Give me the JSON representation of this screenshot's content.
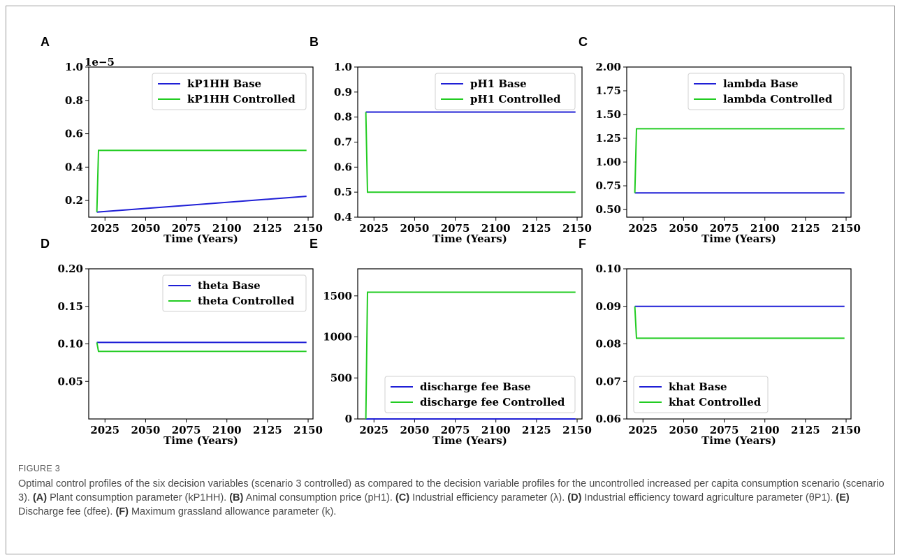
{
  "caption": {
    "label": "FIGURE 3",
    "parts": [
      {
        "t": "Optimal control profiles of the six decision variables (scenario 3 controlled) as compared to the decision variable profiles for the uncontrolled increased per capita consumption scenario (scenario 3). ",
        "b": false
      },
      {
        "t": "(A)",
        "b": true
      },
      {
        "t": " Plant consumption parameter (kP1HH). ",
        "b": false
      },
      {
        "t": "(B)",
        "b": true
      },
      {
        "t": " Animal consumption price (pH1). ",
        "b": false
      },
      {
        "t": "(C)",
        "b": true
      },
      {
        "t": " Industrial efficiency parameter (λ). ",
        "b": false
      },
      {
        "t": "(D)",
        "b": true
      },
      {
        "t": " Industrial efficiency toward agriculture parameter (θP1). ",
        "b": false
      },
      {
        "t": "(E)",
        "b": true
      },
      {
        "t": " Discharge fee (dfee). ",
        "b": false
      },
      {
        "t": "(F)",
        "b": true
      },
      {
        "t": " Maximum grassland allowance parameter (k).",
        "b": false
      }
    ]
  },
  "colors": {
    "base": "#1f1fd6",
    "controlled": "#22cc22"
  },
  "chart_data": [
    {
      "panel": "A",
      "type": "line",
      "xlabel": "Time (Years)",
      "ylabel": "",
      "offset_text": "1e−5",
      "xlim": [
        2015,
        2153
      ],
      "ylim": [
        0.1,
        1.0
      ],
      "xticks": [
        2025,
        2050,
        2075,
        2100,
        2125,
        2150
      ],
      "yticks": [
        0.2,
        0.4,
        0.6,
        0.8,
        1.0
      ],
      "ytick_labels": [
        "0.2",
        "0.4",
        "0.6",
        "0.8",
        "1.0"
      ],
      "legend_position": "top-right",
      "series": [
        {
          "name": "kP1HH Base",
          "color": "base",
          "x": [
            2020,
            2149
          ],
          "y": [
            0.13,
            0.225
          ]
        },
        {
          "name": "kP1HH  Controlled",
          "color": "controlled",
          "x": [
            2020,
            2021,
            2149
          ],
          "y": [
            0.13,
            0.5,
            0.5
          ]
        }
      ]
    },
    {
      "panel": "B",
      "type": "line",
      "xlabel": "Time (Years)",
      "ylabel": "",
      "xlim": [
        2015,
        2153
      ],
      "ylim": [
        0.4,
        1.0
      ],
      "xticks": [
        2025,
        2050,
        2075,
        2100,
        2125,
        2150
      ],
      "yticks": [
        0.4,
        0.5,
        0.6,
        0.7,
        0.8,
        0.9,
        1.0
      ],
      "ytick_labels": [
        "0.4",
        "0.5",
        "0.6",
        "0.7",
        "0.8",
        "0.9",
        "1.0"
      ],
      "legend_position": "top-right",
      "series": [
        {
          "name": "pH1 Base",
          "color": "base",
          "x": [
            2020,
            2149
          ],
          "y": [
            0.82,
            0.82
          ]
        },
        {
          "name": "pH1  Controlled",
          "color": "controlled",
          "x": [
            2020,
            2021,
            2149
          ],
          "y": [
            0.82,
            0.5,
            0.5
          ]
        }
      ]
    },
    {
      "panel": "C",
      "type": "line",
      "xlabel": "Time (Years)",
      "ylabel": "",
      "xlim": [
        2015,
        2153
      ],
      "ylim": [
        0.42,
        2.0
      ],
      "xticks": [
        2025,
        2050,
        2075,
        2100,
        2125,
        2150
      ],
      "yticks": [
        0.5,
        0.75,
        1.0,
        1.25,
        1.5,
        1.75,
        2.0
      ],
      "ytick_labels": [
        "0.50",
        "0.75",
        "1.00",
        "1.25",
        "1.50",
        "1.75",
        "2.00"
      ],
      "legend_position": "top-right",
      "series": [
        {
          "name": "lambda Base",
          "color": "base",
          "x": [
            2020,
            2149
          ],
          "y": [
            0.675,
            0.675
          ]
        },
        {
          "name": "lambda  Controlled",
          "color": "controlled",
          "x": [
            2020,
            2021,
            2149
          ],
          "y": [
            0.675,
            1.35,
            1.35
          ]
        }
      ]
    },
    {
      "panel": "D",
      "type": "line",
      "xlabel": "Time (Years)",
      "ylabel": "",
      "xlim": [
        2015,
        2153
      ],
      "ylim": [
        0.0,
        0.2
      ],
      "xticks": [
        2025,
        2050,
        2075,
        2100,
        2125,
        2150
      ],
      "yticks": [
        0.05,
        0.1,
        0.15,
        0.2
      ],
      "ytick_labels": [
        "0.05",
        "0.10",
        "0.15",
        "0.20"
      ],
      "legend_position": "top-right",
      "series": [
        {
          "name": "theta Base",
          "color": "base",
          "x": [
            2020,
            2149
          ],
          "y": [
            0.102,
            0.102
          ]
        },
        {
          "name": "theta  Controlled",
          "color": "controlled",
          "x": [
            2020,
            2021,
            2149
          ],
          "y": [
            0.102,
            0.09,
            0.09
          ]
        }
      ]
    },
    {
      "panel": "E",
      "type": "line",
      "xlabel": "Time (Years)",
      "ylabel": "",
      "xlim": [
        2015,
        2153
      ],
      "ylim": [
        0,
        1830
      ],
      "xticks": [
        2025,
        2050,
        2075,
        2100,
        2125,
        2150
      ],
      "yticks": [
        0,
        500,
        1000,
        1500
      ],
      "ytick_labels": [
        "0",
        "500",
        "1000",
        "1500"
      ],
      "legend_position": "bottom-right",
      "series": [
        {
          "name": "discharge fee Base",
          "color": "base",
          "x": [
            2020,
            2149
          ],
          "y": [
            0,
            0
          ]
        },
        {
          "name": "discharge fee  Controlled",
          "color": "controlled",
          "x": [
            2020,
            2021,
            2149
          ],
          "y": [
            0,
            1545,
            1545
          ]
        }
      ]
    },
    {
      "panel": "F",
      "type": "line",
      "xlabel": "Time (Years)",
      "ylabel": "",
      "xlim": [
        2015,
        2153
      ],
      "ylim": [
        0.06,
        0.1
      ],
      "xticks": [
        2025,
        2050,
        2075,
        2100,
        2125,
        2150
      ],
      "yticks": [
        0.06,
        0.07,
        0.08,
        0.09,
        0.1
      ],
      "ytick_labels": [
        "0.06",
        "0.07",
        "0.08",
        "0.09",
        "0.10"
      ],
      "legend_position": "bottom-left",
      "series": [
        {
          "name": "khat Base",
          "color": "base",
          "x": [
            2020,
            2149
          ],
          "y": [
            0.09,
            0.09
          ]
        },
        {
          "name": "khat  Controlled",
          "color": "controlled",
          "x": [
            2020,
            2021,
            2149
          ],
          "y": [
            0.09,
            0.0815,
            0.0815
          ]
        }
      ]
    }
  ]
}
